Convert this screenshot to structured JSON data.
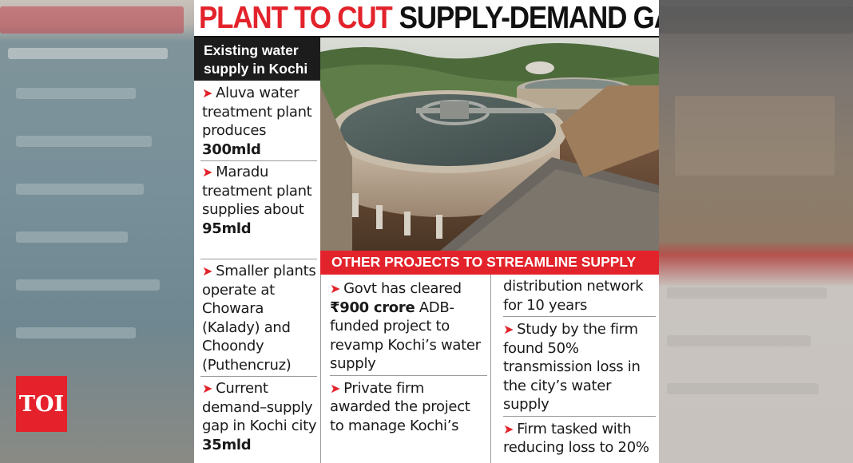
{
  "brand": {
    "logo_text": "TOI",
    "logo_color": "#e3232b"
  },
  "headline": {
    "part1": "PLANT TO CUT",
    "part2": "SUPPLY-DEMAND GAP"
  },
  "sidebar": {
    "title": "Existing water supply in Kochi",
    "bullets": [
      {
        "text": "Aluva water treatment plant produces ",
        "bold": "300mld"
      },
      {
        "text": "Maradu treatment plant supplies about ",
        "bold": "95mld"
      },
      {
        "text": "Smaller plants operate at Chowara (Kalady) and Choondy (Puthencruz)",
        "bold": ""
      },
      {
        "text": "Current demand–supply gap in Kochi city ",
        "bold": "35mld"
      }
    ]
  },
  "projects": {
    "title": "OTHER PROJECTS TO STREAMLINE SUPPLY",
    "col1": [
      {
        "pre": "Govt has cleared ",
        "bold": "₹900 crore",
        "post": " ADB-funded project to revamp Kochi’s water supply"
      },
      {
        "pre": "Private firm awarded the project to manage Kochi’s",
        "bold": "",
        "post": ""
      }
    ],
    "col2_continuation": "distribution network for 10 years",
    "col2": [
      {
        "text": "Study by the firm found 50% transmission loss in the city’s water supply"
      },
      {
        "text": "Firm tasked with reducing loss to 20%"
      }
    ]
  }
}
